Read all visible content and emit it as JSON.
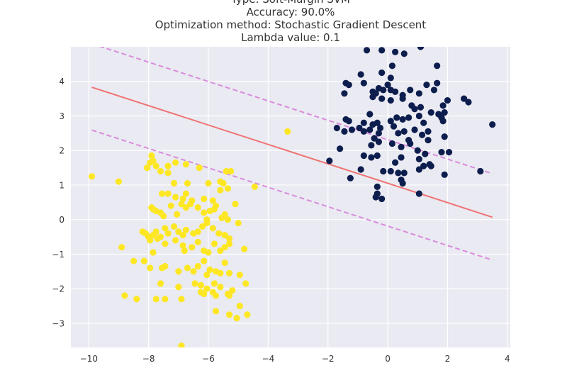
{
  "chart_data": {
    "type": "scatter",
    "title_lines": [
      "Type: Soft-Margin SVM",
      "Accuracy: 90.0%",
      "Optimization method: Stochastic Gradient Descent",
      "Lambda value: 0.1"
    ],
    "xlabel": "",
    "ylabel": "",
    "xlim": [
      -10.6,
      4.1
    ],
    "ylim": [
      -3.7,
      5.0
    ],
    "xticks": [
      -10,
      -8,
      -6,
      -4,
      -2,
      0,
      2,
      4
    ],
    "yticks": [
      -3,
      -2,
      -1,
      0,
      1,
      2,
      3,
      4
    ],
    "xtick_labels": [
      "−10",
      "−8",
      "−6",
      "−4",
      "−2",
      "0",
      "2",
      "4"
    ],
    "ytick_labels": [
      "−3",
      "−2",
      "−1",
      "0",
      "1",
      "2",
      "3",
      "4"
    ],
    "grid": true,
    "colors": {
      "background": "#eaeaf2",
      "grid": "#ffffff",
      "class_a": "#fde725",
      "class_b": "#0d1e4e",
      "decision_line": "#f07373",
      "margin_line": "#d98cdc"
    },
    "lines": [
      {
        "role": "decision-boundary",
        "x": [
          -9.9,
          3.5
        ],
        "y": [
          3.83,
          0.07
        ],
        "style": "solid"
      },
      {
        "role": "margin-upper",
        "x": [
          -9.9,
          3.5
        ],
        "y": [
          5.09,
          1.33
        ],
        "style": "dashed"
      },
      {
        "role": "margin-lower",
        "x": [
          -9.9,
          3.5
        ],
        "y": [
          2.59,
          -1.17
        ],
        "style": "dashed"
      }
    ],
    "series": [
      {
        "class": "a",
        "points": [
          [
            -9.9,
            1.25
          ],
          [
            -9.0,
            1.1
          ],
          [
            -7.9,
            1.85
          ],
          [
            -7.95,
            1.65
          ],
          [
            -7.85,
            1.7
          ],
          [
            -8.05,
            1.5
          ],
          [
            -7.75,
            1.55
          ],
          [
            -7.6,
            1.4
          ],
          [
            -7.35,
            1.55
          ],
          [
            -7.35,
            1.35
          ],
          [
            -7.1,
            1.65
          ],
          [
            -6.75,
            1.6
          ],
          [
            -6.3,
            1.5
          ],
          [
            -5.4,
            1.4
          ],
          [
            -5.25,
            1.4
          ],
          [
            -4.45,
            0.95
          ],
          [
            -3.35,
            2.55
          ],
          [
            -7.15,
            1.05
          ],
          [
            -6.7,
            1.05
          ],
          [
            -6.0,
            1.05
          ],
          [
            -5.6,
            1.1
          ],
          [
            -5.5,
            1.05
          ],
          [
            -5.35,
            0.9
          ],
          [
            -5.6,
            0.85
          ],
          [
            -7.55,
            0.75
          ],
          [
            -7.35,
            0.75
          ],
          [
            -7.1,
            0.65
          ],
          [
            -6.75,
            0.75
          ],
          [
            -6.85,
            0.6
          ],
          [
            -6.55,
            0.55
          ],
          [
            -6.15,
            0.6
          ],
          [
            -5.85,
            0.55
          ],
          [
            -5.75,
            0.4
          ],
          [
            -5.1,
            0.45
          ],
          [
            -7.85,
            0.3
          ],
          [
            -7.9,
            0.35
          ],
          [
            -7.75,
            0.25
          ],
          [
            -7.6,
            0.2
          ],
          [
            -7.5,
            0.1
          ],
          [
            -7.25,
            0.4
          ],
          [
            -7.05,
            0.15
          ],
          [
            -6.9,
            0.45
          ],
          [
            -6.75,
            0.35
          ],
          [
            -6.6,
            0.45
          ],
          [
            -6.35,
            0.35
          ],
          [
            -6.15,
            0.2
          ],
          [
            -6.05,
            0.0
          ],
          [
            -5.95,
            0.25
          ],
          [
            -5.8,
            0.3
          ],
          [
            -5.55,
            0.05
          ],
          [
            -5.45,
            0.15
          ],
          [
            -5.35,
            0.0
          ],
          [
            -5.0,
            -0.1
          ],
          [
            -8.2,
            -0.35
          ],
          [
            -8.1,
            -0.4
          ],
          [
            -8.0,
            -0.5
          ],
          [
            -7.85,
            -0.45
          ],
          [
            -7.75,
            -0.35
          ],
          [
            -7.6,
            -0.5
          ],
          [
            -7.45,
            -0.25
          ],
          [
            -7.35,
            -0.4
          ],
          [
            -7.15,
            -0.2
          ],
          [
            -7.0,
            -0.35
          ],
          [
            -6.85,
            -0.45
          ],
          [
            -6.75,
            -0.3
          ],
          [
            -6.5,
            -0.4
          ],
          [
            -6.35,
            -0.35
          ],
          [
            -6.2,
            -0.2
          ],
          [
            -6.05,
            -0.1
          ],
          [
            -5.85,
            -0.25
          ],
          [
            -5.65,
            -0.4
          ],
          [
            -5.45,
            -0.45
          ],
          [
            -5.3,
            -0.55
          ],
          [
            -7.95,
            -0.6
          ],
          [
            -7.7,
            -0.55
          ],
          [
            -7.45,
            -0.7
          ],
          [
            -7.1,
            -0.6
          ],
          [
            -6.85,
            -0.75
          ],
          [
            -6.55,
            -0.8
          ],
          [
            -6.35,
            -0.65
          ],
          [
            -6.15,
            -0.9
          ],
          [
            -6.0,
            -0.95
          ],
          [
            -5.8,
            -0.7
          ],
          [
            -5.6,
            -0.9
          ],
          [
            -5.45,
            -0.8
          ],
          [
            -5.3,
            -0.7
          ],
          [
            -4.8,
            -0.85
          ],
          [
            -8.9,
            -0.8
          ],
          [
            -7.85,
            -0.95
          ],
          [
            -6.8,
            -0.9
          ],
          [
            -8.5,
            -1.2
          ],
          [
            -8.15,
            -1.2
          ],
          [
            -7.95,
            -1.4
          ],
          [
            -7.55,
            -1.4
          ],
          [
            -7.45,
            -1.35
          ],
          [
            -7.0,
            -1.5
          ],
          [
            -6.7,
            -1.4
          ],
          [
            -6.5,
            -1.5
          ],
          [
            -6.35,
            -1.35
          ],
          [
            -6.15,
            -1.2
          ],
          [
            -5.95,
            -1.45
          ],
          [
            -5.75,
            -1.5
          ],
          [
            -5.6,
            -1.55
          ],
          [
            -5.45,
            -1.25
          ],
          [
            -5.3,
            -1.55
          ],
          [
            -4.95,
            -1.6
          ],
          [
            -6.05,
            -1.6
          ],
          [
            -7.6,
            -1.85
          ],
          [
            -7.0,
            -1.95
          ],
          [
            -6.45,
            -1.85
          ],
          [
            -6.25,
            -1.9
          ],
          [
            -6.05,
            -2.0
          ],
          [
            -5.8,
            -1.85
          ],
          [
            -5.6,
            -1.95
          ],
          [
            -5.35,
            -2.15
          ],
          [
            -5.2,
            -2.05
          ],
          [
            -4.75,
            -1.85
          ],
          [
            -8.8,
            -2.2
          ],
          [
            -8.4,
            -2.3
          ],
          [
            -7.75,
            -2.3
          ],
          [
            -7.45,
            -2.3
          ],
          [
            -6.9,
            -2.3
          ],
          [
            -6.25,
            -2.1
          ],
          [
            -6.15,
            -2.15
          ],
          [
            -5.85,
            -2.1
          ],
          [
            -5.75,
            -2.2
          ],
          [
            -5.3,
            -2.2
          ],
          [
            -4.95,
            -2.5
          ],
          [
            -5.75,
            -2.65
          ],
          [
            -5.3,
            -2.75
          ],
          [
            -5.05,
            -2.85
          ],
          [
            -4.7,
            -2.75
          ],
          [
            -6.9,
            -3.65
          ]
        ]
      },
      {
        "class": "b",
        "points": [
          [
            -0.7,
            4.9
          ],
          [
            -0.2,
            4.9
          ],
          [
            0.25,
            4.85
          ],
          [
            0.55,
            4.8
          ],
          [
            1.1,
            5.0
          ],
          [
            0.15,
            4.45
          ],
          [
            1.65,
            4.45
          ],
          [
            -0.9,
            4.2
          ],
          [
            -0.2,
            4.25
          ],
          [
            0.1,
            4.1
          ],
          [
            -1.4,
            3.95
          ],
          [
            -1.3,
            3.9
          ],
          [
            -0.8,
            3.95
          ],
          [
            -0.5,
            3.7
          ],
          [
            -0.4,
            3.65
          ],
          [
            -0.3,
            3.8
          ],
          [
            -0.15,
            3.75
          ],
          [
            0.0,
            3.9
          ],
          [
            0.1,
            3.75
          ],
          [
            0.25,
            3.7
          ],
          [
            0.5,
            3.6
          ],
          [
            0.75,
            3.75
          ],
          [
            1.05,
            3.65
          ],
          [
            1.3,
            3.9
          ],
          [
            1.55,
            3.75
          ],
          [
            1.65,
            3.95
          ],
          [
            1.9,
            3.1
          ],
          [
            1.85,
            3.3
          ],
          [
            2.0,
            3.45
          ],
          [
            2.55,
            3.5
          ],
          [
            2.7,
            3.4
          ],
          [
            -1.45,
            3.65
          ],
          [
            -0.5,
            3.55
          ],
          [
            -0.2,
            3.5
          ],
          [
            0.1,
            3.45
          ],
          [
            0.5,
            3.5
          ],
          [
            0.8,
            3.3
          ],
          [
            1.1,
            3.25
          ],
          [
            1.45,
            3.1
          ],
          [
            1.7,
            3.05
          ],
          [
            1.8,
            2.95
          ],
          [
            1.85,
            2.85
          ],
          [
            -1.4,
            2.9
          ],
          [
            -1.3,
            2.85
          ],
          [
            -0.6,
            3.05
          ],
          [
            -0.8,
            2.8
          ],
          [
            -0.5,
            2.75
          ],
          [
            -0.35,
            2.8
          ],
          [
            -0.25,
            2.65
          ],
          [
            0.1,
            2.85
          ],
          [
            0.3,
            2.95
          ],
          [
            0.5,
            2.9
          ],
          [
            0.7,
            2.95
          ],
          [
            0.9,
            3.2
          ],
          [
            1.05,
            3.0
          ],
          [
            1.2,
            2.8
          ],
          [
            1.35,
            2.55
          ],
          [
            -1.7,
            2.65
          ],
          [
            -1.45,
            2.55
          ],
          [
            -1.2,
            2.6
          ],
          [
            -0.95,
            2.65
          ],
          [
            -0.8,
            2.55
          ],
          [
            -0.6,
            2.6
          ],
          [
            -0.45,
            2.35
          ],
          [
            -0.3,
            2.5
          ],
          [
            0.2,
            2.7
          ],
          [
            0.35,
            2.5
          ],
          [
            0.55,
            2.55
          ],
          [
            0.7,
            2.3
          ],
          [
            0.9,
            2.6
          ],
          [
            1.15,
            2.45
          ],
          [
            1.35,
            2.3
          ],
          [
            1.9,
            2.4
          ],
          [
            -1.6,
            2.05
          ],
          [
            -0.55,
            2.15
          ],
          [
            -0.3,
            2.25
          ],
          [
            0.15,
            2.2
          ],
          [
            0.45,
            2.1
          ],
          [
            0.75,
            2.2
          ],
          [
            1.0,
            2.0
          ],
          [
            1.25,
            1.9
          ],
          [
            1.8,
            1.95
          ],
          [
            2.05,
            1.95
          ],
          [
            -1.95,
            1.7
          ],
          [
            -0.8,
            1.85
          ],
          [
            -0.55,
            1.8
          ],
          [
            -0.35,
            1.85
          ],
          [
            0.25,
            1.65
          ],
          [
            0.45,
            1.8
          ],
          [
            1.05,
            1.75
          ],
          [
            1.2,
            1.55
          ],
          [
            1.4,
            1.6
          ],
          [
            1.45,
            1.55
          ],
          [
            -0.9,
            1.45
          ],
          [
            -0.15,
            1.4
          ],
          [
            0.1,
            1.4
          ],
          [
            0.35,
            1.35
          ],
          [
            0.55,
            1.35
          ],
          [
            1.05,
            1.45
          ],
          [
            1.9,
            1.3
          ],
          [
            3.1,
            1.4
          ],
          [
            3.5,
            2.75
          ],
          [
            -1.25,
            1.2
          ],
          [
            0.45,
            1.15
          ],
          [
            0.5,
            1.05
          ],
          [
            -0.35,
            0.95
          ],
          [
            -0.35,
            0.75
          ],
          [
            -0.4,
            0.65
          ],
          [
            -0.2,
            0.6
          ],
          [
            1.05,
            0.75
          ]
        ]
      }
    ]
  }
}
